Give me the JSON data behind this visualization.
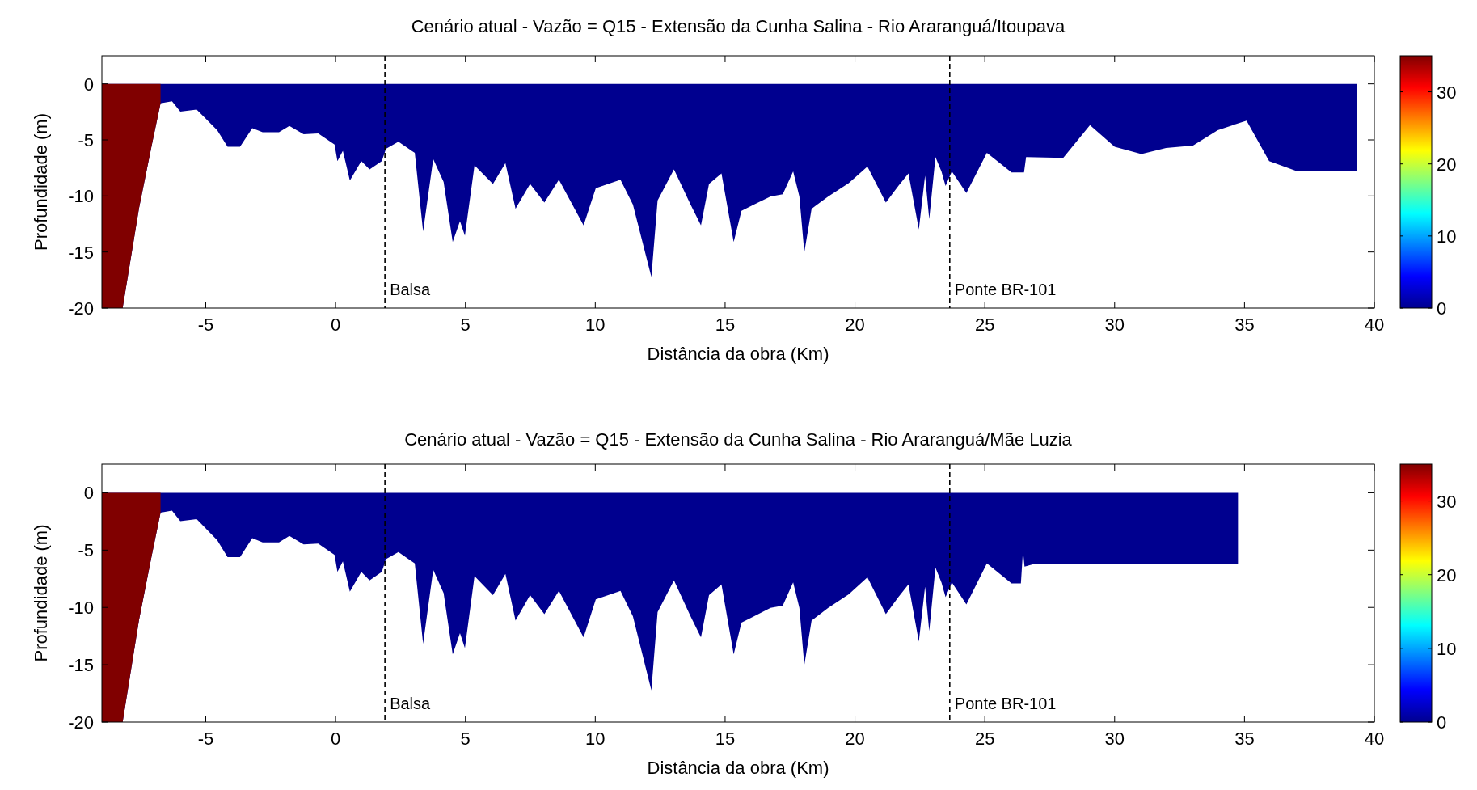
{
  "chart_data": [
    {
      "type": "area",
      "title": "Cenário atual - Vazão = Q15 - Extensão da Cunha Salina - Rio Araranguá/Itoupava",
      "xlabel": "Distância da obra (Km)",
      "ylabel": "Profundidade (m)",
      "xlim": [
        -9,
        40
      ],
      "xticks": [
        -5,
        0,
        5,
        10,
        15,
        20,
        25,
        30,
        35,
        40
      ],
      "ylim": [
        -20,
        2.5
      ],
      "yticks": [
        -20,
        -15,
        -10,
        -5,
        0
      ],
      "clim": [
        0,
        35
      ],
      "cticks": [
        0,
        10,
        20,
        30
      ],
      "series": [
        {
          "color": "#00008f",
          "x": [
            -9,
            -8.2,
            -7.57,
            -7.09,
            -6.74,
            -6.3,
            -5.98,
            -5.35,
            -5.03,
            -4.56,
            -4.16,
            -3.68,
            -3.21,
            -2.81,
            -2.18,
            -1.78,
            -1.23,
            -0.67,
            -0.04,
            0.07,
            0.28,
            0.55,
            0.99,
            1.31,
            1.78,
            1.94,
            2.42,
            3.05,
            3.37,
            3.76,
            4.16,
            4.51,
            4.79,
            4.98,
            5.35,
            6.06,
            6.54,
            6.93,
            7.49,
            8.04,
            8.6,
            9.55,
            10.02,
            10.97,
            11.45,
            12.16,
            12.4,
            13.03,
            13.67,
            14.07,
            14.38,
            14.86,
            15.33,
            15.63,
            16.11,
            16.75,
            17.22,
            17.62,
            17.86,
            18.05,
            18.33,
            18.97,
            19.76,
            20.48,
            21.19,
            21.67,
            22.06,
            22.46,
            22.7,
            22.86,
            23.1,
            23.33,
            23.49,
            23.73,
            24.29,
            25.08,
            26.03,
            26.51,
            26.59,
            28.02,
            29.05,
            30.0,
            31.03,
            31.98,
            33.02,
            33.97,
            35.08,
            35.95,
            36.98,
            39.32
          ],
          "values": [
            -20,
            -20,
            -11.1,
            -5.6,
            -1.73,
            -1.55,
            -2.47,
            -2.29,
            -3.03,
            -4.13,
            -5.61,
            -5.61,
            -3.95,
            -4.32,
            -4.32,
            -3.76,
            -4.5,
            -4.43,
            -5.42,
            -6.9,
            -5.98,
            -8.63,
            -6.9,
            -7.64,
            -6.9,
            -5.79,
            -5.17,
            -6.16,
            -13.17,
            -6.72,
            -8.75,
            -14.1,
            -12.25,
            -13.54,
            -7.27,
            -8.93,
            -7.08,
            -11.14,
            -8.93,
            -10.59,
            -8.56,
            -12.62,
            -9.3,
            -8.56,
            -10.77,
            -17.23,
            -10.41,
            -7.64,
            -10.77,
            -12.62,
            -8.93,
            -8.0,
            -14.1,
            -11.33,
            -10.77,
            -10.04,
            -9.85,
            -7.82,
            -10.04,
            -15.02,
            -11.14,
            -10.04,
            -8.86,
            -7.38,
            -10.59,
            -9.11,
            -8.0,
            -12.99,
            -8.19,
            -12.07,
            -6.53,
            -7.82,
            -9.11,
            -7.82,
            -9.74,
            -6.16,
            -7.9,
            -7.9,
            -6.53,
            -6.61,
            -3.69,
            -5.61,
            -6.27,
            -5.72,
            -5.5,
            -4.13,
            -3.28,
            -6.9,
            -7.75,
            -7.75
          ]
        },
        {
          "color": "#800000",
          "x": [
            -9,
            -8.2,
            -7.57,
            -7.09,
            -6.74
          ],
          "values": [
            -20,
            -20,
            -11.1,
            -5.6,
            -1.73
          ]
        }
      ],
      "ref_lines": [
        {
          "axis": "x",
          "value": 1.9,
          "label": "Balsa",
          "color": "#000000",
          "line_style": "dashed"
        },
        {
          "axis": "x",
          "value": 23.65,
          "label": "Ponte BR-101",
          "color": "#000000",
          "line_style": "dashed"
        }
      ]
    },
    {
      "type": "area",
      "title": "Cenário atual - Vazão = Q15 - Extensão da Cunha Salina - Rio Araranguá/Mãe Luzia",
      "xlabel": "Distância da obra (Km)",
      "ylabel": "Profundidade (m)",
      "xlim": [
        -9,
        40
      ],
      "xticks": [
        -5,
        0,
        5,
        10,
        15,
        20,
        25,
        30,
        35,
        40
      ],
      "ylim": [
        -20,
        2.5
      ],
      "yticks": [
        -20,
        -15,
        -10,
        -5,
        0
      ],
      "clim": [
        0,
        35
      ],
      "cticks": [
        0,
        10,
        20,
        30
      ],
      "series": [
        {
          "color": "#00008f",
          "x": [
            -9,
            -8.2,
            -7.57,
            -7.09,
            -6.74,
            -6.3,
            -5.98,
            -5.35,
            -5.03,
            -4.56,
            -4.16,
            -3.68,
            -3.21,
            -2.81,
            -2.18,
            -1.78,
            -1.23,
            -0.67,
            -0.04,
            0.07,
            0.28,
            0.55,
            0.99,
            1.31,
            1.78,
            1.94,
            2.42,
            3.05,
            3.37,
            3.76,
            4.16,
            4.51,
            4.79,
            4.98,
            5.35,
            6.06,
            6.54,
            6.93,
            7.49,
            8.04,
            8.6,
            9.55,
            10.02,
            10.97,
            11.45,
            12.16,
            12.4,
            13.03,
            13.67,
            14.07,
            14.38,
            14.86,
            15.33,
            15.63,
            16.11,
            16.75,
            17.22,
            17.62,
            17.86,
            18.05,
            18.33,
            18.97,
            19.76,
            20.48,
            21.19,
            21.67,
            22.06,
            22.46,
            22.7,
            22.86,
            23.1,
            23.33,
            23.49,
            23.73,
            24.29,
            25.08,
            26.03,
            26.39,
            26.47,
            26.53,
            26.87,
            34.75
          ],
          "values": [
            -20,
            -20,
            -11.1,
            -5.6,
            -1.73,
            -1.55,
            -2.47,
            -2.29,
            -3.03,
            -4.13,
            -5.61,
            -5.61,
            -3.95,
            -4.32,
            -4.32,
            -3.76,
            -4.5,
            -4.43,
            -5.42,
            -6.9,
            -5.98,
            -8.63,
            -6.9,
            -7.64,
            -6.9,
            -5.79,
            -5.17,
            -6.16,
            -13.17,
            -6.72,
            -8.75,
            -14.1,
            -12.25,
            -13.54,
            -7.27,
            -8.93,
            -7.08,
            -11.14,
            -8.93,
            -10.59,
            -8.56,
            -12.62,
            -9.3,
            -8.56,
            -10.77,
            -17.23,
            -10.41,
            -7.64,
            -10.77,
            -12.62,
            -8.93,
            -8.0,
            -14.1,
            -11.33,
            -10.77,
            -10.04,
            -9.85,
            -7.82,
            -10.04,
            -15.02,
            -11.14,
            -10.04,
            -8.86,
            -7.38,
            -10.59,
            -9.11,
            -8.0,
            -12.99,
            -8.19,
            -12.07,
            -6.53,
            -7.82,
            -9.11,
            -7.82,
            -9.74,
            -6.16,
            -7.9,
            -7.9,
            -5.06,
            -6.44,
            -6.22,
            -6.22
          ]
        },
        {
          "color": "#800000",
          "x": [
            -9,
            -8.2,
            -7.57,
            -7.09,
            -6.74
          ],
          "values": [
            -20,
            -20,
            -11.1,
            -5.6,
            -1.73
          ]
        }
      ],
      "ref_lines": [
        {
          "axis": "x",
          "value": 1.9,
          "label": "Balsa",
          "color": "#000000",
          "line_style": "dashed"
        },
        {
          "axis": "x",
          "value": 23.65,
          "label": "Ponte BR-101",
          "color": "#000000",
          "line_style": "dashed"
        }
      ]
    }
  ]
}
